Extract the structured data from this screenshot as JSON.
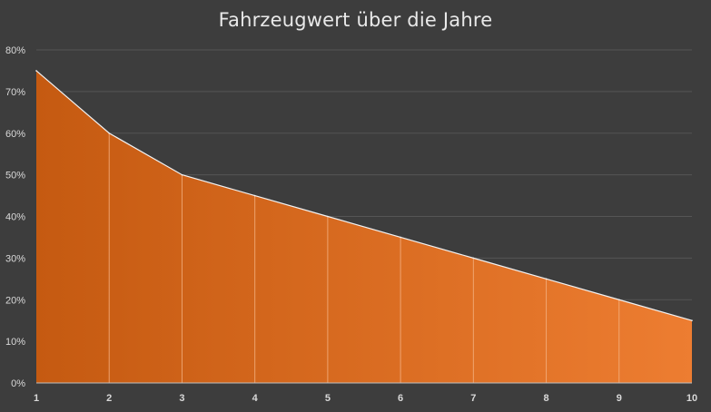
{
  "chart_data": {
    "type": "area",
    "title": "Fahrzeugwert über die Jahre",
    "xlabel": "",
    "ylabel": "",
    "categories": [
      "1",
      "2",
      "3",
      "4",
      "5",
      "6",
      "7",
      "8",
      "9",
      "10"
    ],
    "values": [
      75,
      60,
      50,
      45,
      40,
      35,
      30,
      25,
      20,
      15
    ],
    "value_unit": "%",
    "ylim": [
      0,
      80
    ],
    "yticks": [
      "0%",
      "10%",
      "20%",
      "30%",
      "40%",
      "50%",
      "60%",
      "70%",
      "80%"
    ],
    "grid": true,
    "legend": "none",
    "colors": {
      "background": "#3d3d3d",
      "fill_start": "#c55a11",
      "fill_end": "#ed7d31",
      "line": "#f2f2f2",
      "grid": "#555555",
      "text": "#d9d9d9",
      "title": "#e9e9e9"
    }
  }
}
